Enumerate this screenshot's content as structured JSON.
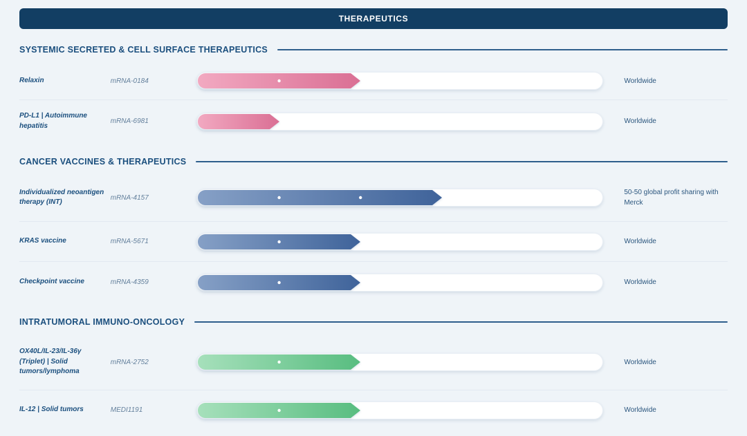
{
  "page": {
    "title": "THERAPEUTICS",
    "background": "#eff4f8",
    "header_bg": "#123e63",
    "section_title_color": "#1b4f7e",
    "divider_color": "#e2e9f0"
  },
  "colors": {
    "pink": {
      "start": "#f2a9c1",
      "end": "#da6f94"
    },
    "blue": {
      "start": "#86a0c6",
      "end": "#3f639a"
    },
    "green": {
      "start": "#a6e0bb",
      "end": "#58bd80"
    }
  },
  "sections": [
    {
      "title": "SYSTEMIC SECRETED & CELL SURFACE THERAPEUTICS",
      "rows": [
        {
          "name": "Relaxin",
          "id": "mRNA-0184",
          "rights": "Worldwide",
          "color": "pink",
          "fill_pct": 40,
          "dots": [
            20
          ]
        },
        {
          "name": "PD-L1 | Autoimmune hepatitis",
          "id": "mRNA-6981",
          "rights": "Worldwide",
          "color": "pink",
          "fill_pct": 20,
          "dots": []
        }
      ]
    },
    {
      "title": "CANCER VACCINES & THERAPEUTICS",
      "rows": [
        {
          "name": "Individualized neoantigen therapy (INT)",
          "id": "mRNA-4157",
          "rights": "50-50 global profit sharing with Merck",
          "color": "blue",
          "fill_pct": 60,
          "dots": [
            20,
            40
          ]
        },
        {
          "name": "KRAS vaccine",
          "id": "mRNA-5671",
          "rights": "Worldwide",
          "color": "blue",
          "fill_pct": 40,
          "dots": [
            20
          ]
        },
        {
          "name": "Checkpoint vaccine",
          "id": "mRNA-4359",
          "rights": "Worldwide",
          "color": "blue",
          "fill_pct": 40,
          "dots": [
            20
          ]
        }
      ]
    },
    {
      "title": "INTRATUMORAL IMMUNO-ONCOLOGY",
      "rows": [
        {
          "name": "OX40L/IL-23/IL-36γ (Triplet) | Solid tumors/lymphoma",
          "id": "mRNA-2752",
          "rights": "Worldwide",
          "color": "green",
          "fill_pct": 40,
          "dots": [
            20
          ]
        },
        {
          "name": "IL-12 | Solid tumors",
          "id": "MEDI1191",
          "rights": "Worldwide",
          "color": "green",
          "fill_pct": 40,
          "dots": [
            20
          ]
        }
      ]
    }
  ],
  "chart_data": {
    "type": "bar",
    "title": "THERAPEUTICS",
    "categories": [
      "Relaxin",
      "PD-L1 | Autoimmune hepatitis",
      "Individualized neoantigen therapy (INT)",
      "KRAS vaccine",
      "Checkpoint vaccine",
      "OX40L/IL-23/IL-36γ (Triplet) | Solid tumors/lymphoma",
      "IL-12 | Solid tumors"
    ],
    "values": [
      40,
      20,
      60,
      40,
      40,
      40,
      40
    ],
    "marker_dot_pcts": [
      [
        20
      ],
      [],
      [
        20,
        40
      ],
      [
        20
      ],
      [
        20
      ],
      [
        20
      ],
      [
        20
      ]
    ],
    "bar_colors": [
      "pink",
      "pink",
      "blue",
      "blue",
      "blue",
      "green",
      "green"
    ],
    "xlabel": "",
    "ylabel": "",
    "xlim": [
      0,
      100
    ],
    "legend": "none",
    "grid": false
  }
}
